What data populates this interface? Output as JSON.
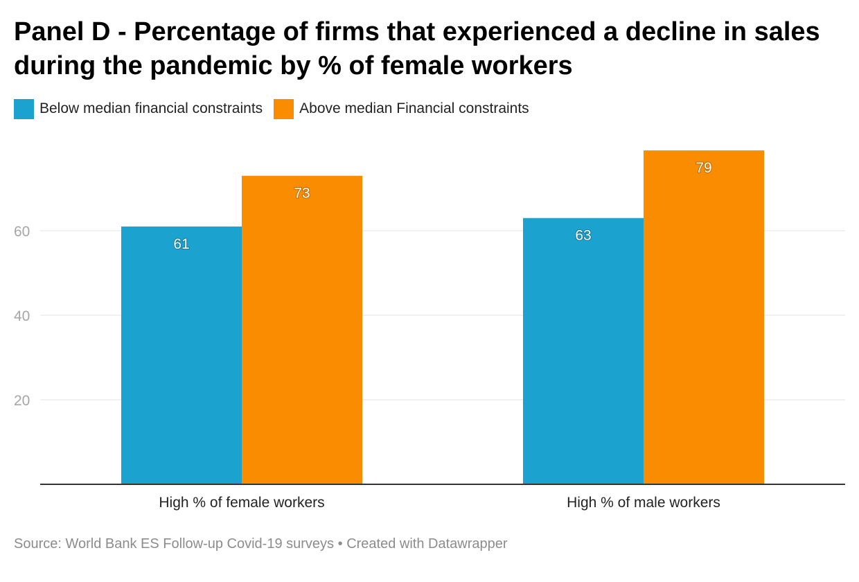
{
  "header": {
    "title": "Panel D - Percentage of firms that experienced a decline in sales during the pandemic by % of female workers"
  },
  "legend": {
    "items": [
      {
        "label": "Below median financial constraints",
        "color": "#1ba2cf"
      },
      {
        "label": "Above median Financial constraints",
        "color": "#f98c00"
      }
    ]
  },
  "footer": {
    "source": "Source: World Bank ES Follow-up Covid-19 surveys",
    "separator": "•",
    "credit": "Created with Datawrapper"
  },
  "chart_data": {
    "type": "bar",
    "categories": [
      "High % of female workers",
      "High % of male workers"
    ],
    "series": [
      {
        "name": "Below median financial constraints",
        "color": "#1ba2cf",
        "values": [
          61,
          63
        ]
      },
      {
        "name": "Above median Financial constraints",
        "color": "#f98c00",
        "values": [
          73,
          79
        ]
      }
    ],
    "ylim": [
      0,
      80
    ],
    "yticks": [
      20,
      40,
      60
    ],
    "grid": true,
    "legend_position": "top-left",
    "data_labels": true
  }
}
